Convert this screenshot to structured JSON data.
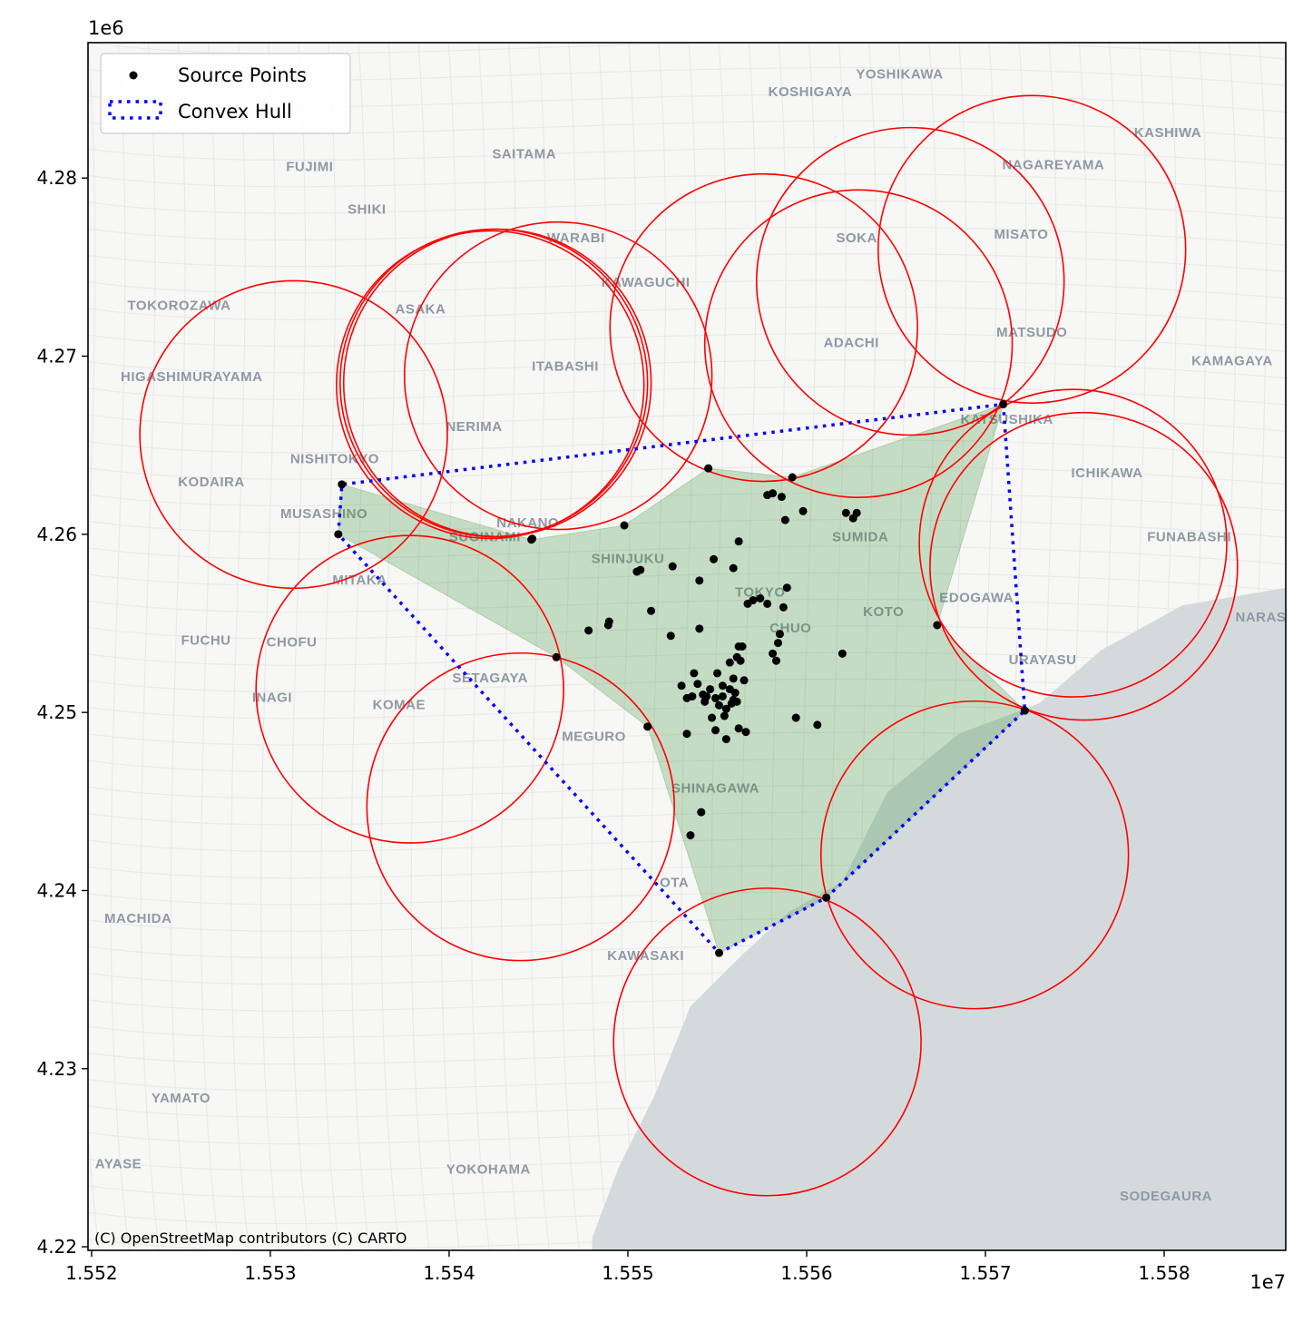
{
  "chart_data": {
    "type": "scatter",
    "title": "",
    "xlabel": "",
    "ylabel": "",
    "x_offset_label": "1e7",
    "y_offset_label": "1e6",
    "xlim": [
      15519800,
      15586800
    ],
    "ylim": [
      4219800,
      4287600
    ],
    "x_ticks": [
      15520000,
      15530000,
      15540000,
      15550000,
      15560000,
      15570000,
      15580000
    ],
    "x_tick_labels": [
      "1.552",
      "1.553",
      "1.554",
      "1.555",
      "1.556",
      "1.557",
      "1.558"
    ],
    "y_ticks": [
      4220000,
      4230000,
      4240000,
      4250000,
      4260000,
      4270000,
      4280000
    ],
    "y_tick_labels": [
      "4.22",
      "4.23",
      "4.24",
      "4.25",
      "4.26",
      "4.27",
      "4.28"
    ],
    "legend": {
      "placement": "upper-left",
      "entries": [
        {
          "label": "Source Points",
          "marker": "dot",
          "color": "#000000"
        },
        {
          "label": "Convex Hull",
          "marker": "dotted-line",
          "color": "#0000ff"
        }
      ]
    },
    "attribution": "(C) OpenStreetMap contributors (C) CARTO",
    "colors": {
      "points": "#000000",
      "hull": "#0000ff",
      "circles": "#ff0000",
      "shaded_area": "#2e8b2e",
      "land": "#f7f7f6",
      "water": "#d4dadc"
    },
    "series": [
      {
        "name": "Source Points",
        "points": [
          [
            15533800,
            4260000
          ],
          [
            15534000,
            4262800
          ],
          [
            15544600,
            4259700
          ],
          [
            15544650,
            4259750
          ],
          [
            15546000,
            4253100
          ],
          [
            15547800,
            4254600
          ],
          [
            15548900,
            4254900
          ],
          [
            15548950,
            4255100
          ],
          [
            15549800,
            4260500
          ],
          [
            15550500,
            4257900
          ],
          [
            15550700,
            4258000
          ],
          [
            15551100,
            4249200
          ],
          [
            15551300,
            4255700
          ],
          [
            15552400,
            4254300
          ],
          [
            15552500,
            4258200
          ],
          [
            15553000,
            4251500
          ],
          [
            15553300,
            4250800
          ],
          [
            15553600,
            4250900
          ],
          [
            15553700,
            4252200
          ],
          [
            15553900,
            4251600
          ],
          [
            15554000,
            4254700
          ],
          [
            15554000,
            4257400
          ],
          [
            15554200,
            4251000
          ],
          [
            15554300,
            4250600
          ],
          [
            15554400,
            4250900
          ],
          [
            15554500,
            4263700
          ],
          [
            15554600,
            4251300
          ],
          [
            15554700,
            4249700
          ],
          [
            15554800,
            4258600
          ],
          [
            15554900,
            4250800
          ],
          [
            15555000,
            4252200
          ],
          [
            15555100,
            4250400
          ],
          [
            15555300,
            4250900
          ],
          [
            15555400,
            4249800
          ],
          [
            15555500,
            4248500
          ],
          [
            15555500,
            4250200
          ],
          [
            15555700,
            4251300
          ],
          [
            15555700,
            4252800
          ],
          [
            15555800,
            4250500
          ],
          [
            15555900,
            4258100
          ],
          [
            15555900,
            4251900
          ],
          [
            15556000,
            4251100
          ],
          [
            15556100,
            4250600
          ],
          [
            15556100,
            4253100
          ],
          [
            15556200,
            4249100
          ],
          [
            15556200,
            4259600
          ],
          [
            15556300,
            4252900
          ],
          [
            15556400,
            4253700
          ],
          [
            15556500,
            4251800
          ],
          [
            15556600,
            4248900
          ],
          [
            15556700,
            4256100
          ],
          [
            15557000,
            4256300
          ],
          [
            15557400,
            4256400
          ],
          [
            15557800,
            4256100
          ],
          [
            15557800,
            4262200
          ],
          [
            15558100,
            4262300
          ],
          [
            15558100,
            4253300
          ],
          [
            15558300,
            4252900
          ],
          [
            15558400,
            4253900
          ],
          [
            15558500,
            4254400
          ],
          [
            15558600,
            4262100
          ],
          [
            15558700,
            4255900
          ],
          [
            15558800,
            4260800
          ],
          [
            15558900,
            4257000
          ],
          [
            15559200,
            4263200
          ],
          [
            15559400,
            4249700
          ],
          [
            15559800,
            4261300
          ],
          [
            15560600,
            4249300
          ],
          [
            15562000,
            4253300
          ],
          [
            15562200,
            4261200
          ],
          [
            15562600,
            4260900
          ],
          [
            15562800,
            4261200
          ],
          [
            15567300,
            4254900
          ],
          [
            15571000,
            4267300
          ],
          [
            15572200,
            4250100
          ],
          [
            15561100,
            4239600
          ],
          [
            15555100,
            4236500
          ],
          [
            15554100,
            4244400
          ],
          [
            15553500,
            4243100
          ],
          [
            15554900,
            4249000
          ],
          [
            15553300,
            4248800
          ],
          [
            15555300,
            4251500
          ],
          [
            15555900,
            4250700
          ],
          [
            15556200,
            4253700
          ]
        ]
      }
    ],
    "convex_hull": [
      [
        15533800,
        4260000
      ],
      [
        15534000,
        4262800
      ],
      [
        15571000,
        4267300
      ],
      [
        15572200,
        4250100
      ],
      [
        15561100,
        4239600
      ],
      [
        15555100,
        4236500
      ]
    ],
    "shaded_area": [
      [
        15533800,
        4260000
      ],
      [
        15534000,
        4262800
      ],
      [
        15544600,
        4259700
      ],
      [
        15549800,
        4260500
      ],
      [
        15554500,
        4263700
      ],
      [
        15559200,
        4263200
      ],
      [
        15571000,
        4267300
      ],
      [
        15567300,
        4254900
      ],
      [
        15572200,
        4250100
      ],
      [
        15561100,
        4239600
      ],
      [
        15555100,
        4236500
      ],
      [
        15551100,
        4249200
      ],
      [
        15546000,
        4253100
      ]
    ],
    "circles": [
      {
        "cx": 15531300,
        "cy": 4265600,
        "r": 8600
      },
      {
        "cx": 15537800,
        "cy": 4251300,
        "r": 8600
      },
      {
        "cx": 15544000,
        "cy": 4244700,
        "r": 8600
      },
      {
        "cx": 15542300,
        "cy": 4268400,
        "r": 8600
      },
      {
        "cx": 15542500,
        "cy": 4268500,
        "r": 8600
      },
      {
        "cx": 15542700,
        "cy": 4268500,
        "r": 8600
      },
      {
        "cx": 15546100,
        "cy": 4268900,
        "r": 8600
      },
      {
        "cx": 15557600,
        "cy": 4271600,
        "r": 8600
      },
      {
        "cx": 15562900,
        "cy": 4270700,
        "r": 8600
      },
      {
        "cx": 15565800,
        "cy": 4274200,
        "r": 8600
      },
      {
        "cx": 15572600,
        "cy": 4276000,
        "r": 8600
      },
      {
        "cx": 15574900,
        "cy": 4259500,
        "r": 8600
      },
      {
        "cx": 15575500,
        "cy": 4258200,
        "r": 8600
      },
      {
        "cx": 15569400,
        "cy": 4242000,
        "r": 8600
      },
      {
        "cx": 15557800,
        "cy": 4231500,
        "r": 8600
      }
    ],
    "basemap": {
      "water_polygons": [
        [
          [
            15586800,
            4257000
          ],
          [
            15581000,
            4256000
          ],
          [
            15576500,
            4253500
          ],
          [
            15573000,
            4250500
          ],
          [
            15568500,
            4248800
          ],
          [
            15564500,
            4245500
          ],
          [
            15562000,
            4240500
          ],
          [
            15559000,
            4238800
          ],
          [
            15556500,
            4236500
          ],
          [
            15553500,
            4233500
          ],
          [
            15551500,
            4228500
          ],
          [
            15549500,
            4224500
          ],
          [
            15548000,
            4220500
          ],
          [
            15548000,
            4219800
          ],
          [
            15586800,
            4219800
          ]
        ]
      ],
      "place_labels": [
        {
          "text": "YOSHIKAWA",
          "x": 15565200,
          "y": 4285800
        },
        {
          "text": "KOSHIGAYA",
          "x": 15560200,
          "y": 4284800
        },
        {
          "text": "KASHIWA",
          "x": 15580200,
          "y": 4282500
        },
        {
          "text": "NAGAREYAMA",
          "x": 15573800,
          "y": 4280700
        },
        {
          "text": "SAITAMA",
          "x": 15544200,
          "y": 4281300
        },
        {
          "text": "FUJIMI",
          "x": 15532200,
          "y": 4280600
        },
        {
          "text": "SHIKI",
          "x": 15535400,
          "y": 4278200
        },
        {
          "text": "WARABI",
          "x": 15547100,
          "y": 4276600
        },
        {
          "text": "SOKA",
          "x": 15562800,
          "y": 4276600
        },
        {
          "text": "MISATO",
          "x": 15572000,
          "y": 4276800
        },
        {
          "text": "KAWAGUCHI",
          "x": 15551000,
          "y": 4274100
        },
        {
          "text": "TOKOROZAWA",
          "x": 15524900,
          "y": 4272800
        },
        {
          "text": "ASAKA",
          "x": 15538400,
          "y": 4272600
        },
        {
          "text": "MATSUDO",
          "x": 15572600,
          "y": 4271300
        },
        {
          "text": "ADACHI",
          "x": 15562500,
          "y": 4270700
        },
        {
          "text": "ITABASHI",
          "x": 15546500,
          "y": 4269400
        },
        {
          "text": "KAMAGAYA",
          "x": 15583800,
          "y": 4269700
        },
        {
          "text": "HIGASHIMURAYAMA",
          "x": 15525600,
          "y": 4268800
        },
        {
          "text": "NERIMA",
          "x": 15541400,
          "y": 4266000
        },
        {
          "text": "KATSUSHIKA",
          "x": 15571200,
          "y": 4266400
        },
        {
          "text": "NISHITOKYO",
          "x": 15533600,
          "y": 4264200
        },
        {
          "text": "ICHIKAWA",
          "x": 15576800,
          "y": 4263400
        },
        {
          "text": "KODAIRA",
          "x": 15526700,
          "y": 4262900
        },
        {
          "text": "MUSASHINO",
          "x": 15533000,
          "y": 4261100
        },
        {
          "text": "NAKANO",
          "x": 15544400,
          "y": 4260600
        },
        {
          "text": "SUGINAMI",
          "x": 15542000,
          "y": 4259800
        },
        {
          "text": "SUMIDA",
          "x": 15563000,
          "y": 4259800
        },
        {
          "text": "FUNABASHI",
          "x": 15581400,
          "y": 4259800
        },
        {
          "text": "SHINJUKU",
          "x": 15550000,
          "y": 4258600
        },
        {
          "text": "MITAKA",
          "x": 15535000,
          "y": 4257400
        },
        {
          "text": "TOKYO",
          "x": 15557400,
          "y": 4256700
        },
        {
          "text": "EDOGAWA",
          "x": 15569500,
          "y": 4256400
        },
        {
          "text": "KOTO",
          "x": 15564300,
          "y": 4255600
        },
        {
          "text": "NARAS",
          "x": 15585400,
          "y": 4255300
        },
        {
          "text": "CHUO",
          "x": 15559100,
          "y": 4254700
        },
        {
          "text": "FUCHU",
          "x": 15526400,
          "y": 4254000
        },
        {
          "text": "CHOFU",
          "x": 15531200,
          "y": 4253900
        },
        {
          "text": "URAYASU",
          "x": 15573200,
          "y": 4252900
        },
        {
          "text": "SETAGAYA",
          "x": 15542300,
          "y": 4251900
        },
        {
          "text": "INAGI",
          "x": 15530100,
          "y": 4250800
        },
        {
          "text": "KOMAE",
          "x": 15537200,
          "y": 4250400
        },
        {
          "text": "MEGURO",
          "x": 15548100,
          "y": 4248600
        },
        {
          "text": "SHINAGAWA",
          "x": 15554900,
          "y": 4245700
        },
        {
          "text": "OTA",
          "x": 15552600,
          "y": 4240400
        },
        {
          "text": "MACHIDA",
          "x": 15522600,
          "y": 4238400
        },
        {
          "text": "KAWASAKI",
          "x": 15551000,
          "y": 4236300
        },
        {
          "text": "YAMATO",
          "x": 15525000,
          "y": 4228300
        },
        {
          "text": "YOKOHAMA",
          "x": 15542200,
          "y": 4224300
        },
        {
          "text": "SODEGAURA",
          "x": 15580100,
          "y": 4222800
        },
        {
          "text": "AYASE",
          "x": 15521500,
          "y": 4224600
        }
      ]
    }
  }
}
